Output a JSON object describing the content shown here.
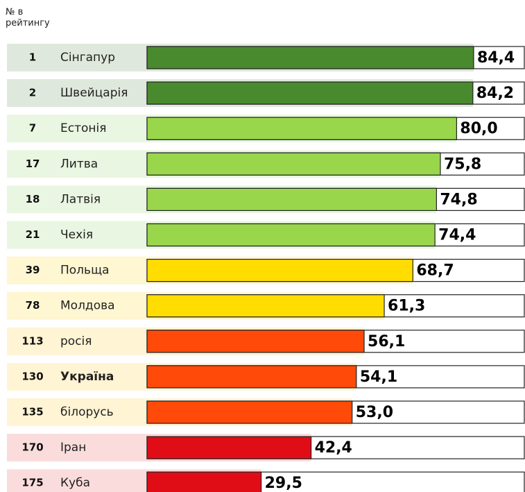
{
  "chart_data": {
    "type": "bar",
    "header": "№ в рейтингу",
    "ranks": [
      "1",
      "2",
      "7",
      "17",
      "18",
      "21",
      "39",
      "78",
      "113",
      "130",
      "135",
      "170",
      "175"
    ],
    "categories": [
      "Сінгапур",
      "Швейцарія",
      "Естонія",
      "Литва",
      "Латвія",
      "Чехія",
      "Польща",
      "Молдова",
      "росія",
      "Україна",
      "білорусь",
      "Іран",
      "Куба"
    ],
    "values": [
      84.4,
      84.2,
      80.0,
      75.8,
      74.8,
      74.4,
      68.7,
      61.3,
      56.1,
      54.1,
      53.0,
      42.4,
      29.5
    ],
    "value_labels": [
      "84,4",
      "84,2",
      "80,0",
      "75,8",
      "74,8",
      "74,4",
      "68,7",
      "61,3",
      "56,1",
      "54,1",
      "53,0",
      "42,4",
      "29,5"
    ],
    "colors": [
      "#4a8a2e",
      "#4a8a2e",
      "#99d64c",
      "#99d64c",
      "#99d64c",
      "#99d64c",
      "#ffdd00",
      "#ffdd00",
      "#ff4a0a",
      "#ff4a0a",
      "#ff4a0a",
      "#e00d17",
      "#e00d17"
    ],
    "row_colors": [
      "#dfe8dc",
      "#dfe8dc",
      "#e9f6e1",
      "#e9f6e1",
      "#e9f6e1",
      "#e9f6e1",
      "#fff6d2",
      "#fff6d2",
      "#fff4d4",
      "#fff4d4",
      "#fff4d4",
      "#fbdcdc",
      "#fbdcdc"
    ],
    "highlight_index": 9
  }
}
